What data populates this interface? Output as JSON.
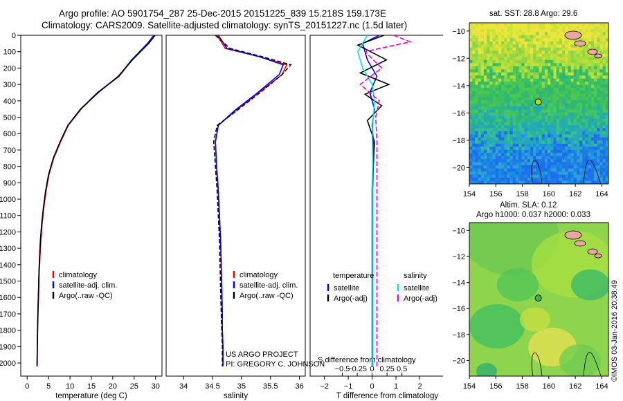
{
  "header": {
    "line1": "Argo profile: AO 5901754_287 25-Dec-2015 20151225_839 15.218S 159.173E",
    "line2": "Climatology: CARS2009. Satellite-adjusted climatology: synTS_20151227.nc (1.5d later)"
  },
  "colors": {
    "climatology": "#ff0000",
    "satellite": "#0000ff",
    "argo": "#000000",
    "sat_salinity": "#00e5e5",
    "argo_salinity": "#e600e6",
    "land": "#e8a8a0"
  },
  "depth_axis": {
    "ticks": [
      0,
      100,
      200,
      300,
      400,
      500,
      600,
      700,
      800,
      900,
      1000,
      1100,
      1200,
      1300,
      1400,
      1500,
      1600,
      1700,
      1800,
      1900,
      2000
    ],
    "range": [
      0,
      2080
    ]
  },
  "chart_data": [
    {
      "type": "line",
      "xlabel": "temperature (deg C)",
      "xlim": [
        -1.5,
        31.5
      ],
      "xticks": [
        0,
        5,
        10,
        15,
        20,
        25,
        30
      ],
      "ylim": [
        2080,
        0
      ],
      "series": [
        {
          "name": "climatology",
          "color": "#ff0000",
          "x": [
            29.7,
            28.2,
            24.5,
            21.5,
            16.5,
            12.6,
            9.6,
            7.8,
            6.2,
            5.1,
            4.4,
            3.9,
            3.5,
            3.2,
            3.0,
            2.8,
            2.7,
            2.6,
            2.5,
            2.4,
            2.35
          ],
          "y": [
            0,
            50,
            150,
            250,
            350,
            450,
            550,
            650,
            750,
            850,
            950,
            1050,
            1150,
            1250,
            1350,
            1450,
            1550,
            1650,
            1750,
            1850,
            2020
          ]
        },
        {
          "name": "satellite-adj. clim.",
          "color": "#0000ff",
          "x": [
            29.6,
            28.1,
            24.4,
            21.4,
            16.4,
            12.5,
            9.5,
            7.7,
            6.1,
            5.0,
            4.3,
            3.8,
            3.4,
            3.1,
            2.9,
            2.75,
            2.65,
            2.55,
            2.45,
            2.38,
            2.3
          ],
          "y": [
            0,
            50,
            150,
            250,
            350,
            450,
            550,
            650,
            750,
            850,
            950,
            1050,
            1150,
            1250,
            1350,
            1450,
            1550,
            1650,
            1750,
            1850,
            2020
          ]
        },
        {
          "name": "Argo(..raw -QC)",
          "color": "#000000",
          "x": [
            29.9,
            28.4,
            24.6,
            21.3,
            16.6,
            12.5,
            9.5,
            7.7,
            6.1,
            5.0,
            4.3,
            3.8,
            3.4,
            3.1,
            2.9,
            2.75,
            2.65,
            2.55,
            2.45,
            2.38,
            2.3
          ],
          "y": [
            0,
            50,
            150,
            250,
            350,
            450,
            550,
            650,
            750,
            850,
            950,
            1050,
            1150,
            1250,
            1350,
            1450,
            1550,
            1650,
            1750,
            1850,
            2020
          ]
        }
      ],
      "legend": [
        "climatology",
        "satellite-adj. clim.",
        "Argo(..raw -QC)"
      ]
    },
    {
      "type": "line",
      "xlabel": "salinity",
      "xlim": [
        33.7,
        36.1
      ],
      "xticks": [
        34,
        34.5,
        35,
        35.5,
        36
      ],
      "xticklabels": [
        "34",
        "34.5",
        "35",
        "35.5",
        "36"
      ],
      "ylim": [
        2080,
        0
      ],
      "series": [
        {
          "name": "climatology",
          "color": "#ff0000",
          "x": [
            34.58,
            34.72,
            35.3,
            35.78,
            35.7,
            35.3,
            34.9,
            34.6,
            34.55,
            34.57,
            34.6,
            34.62,
            34.64,
            34.65,
            34.66,
            34.67,
            34.67,
            34.68,
            34.68,
            34.68
          ],
          "y": [
            0,
            80,
            130,
            180,
            240,
            350,
            460,
            550,
            650,
            800,
            950,
            1100,
            1250,
            1400,
            1550,
            1700,
            1800,
            1900,
            1950,
            2020
          ]
        },
        {
          "name": "satellite-adj. clim.",
          "color": "#0000ff",
          "x": [
            34.6,
            34.75,
            35.3,
            35.72,
            35.65,
            35.28,
            34.88,
            34.6,
            34.55,
            34.57,
            34.6,
            34.62,
            34.64,
            34.65,
            34.66,
            34.67,
            34.67,
            34.68,
            34.68,
            34.68
          ],
          "y": [
            0,
            80,
            130,
            180,
            240,
            350,
            460,
            550,
            650,
            800,
            950,
            1100,
            1250,
            1400,
            1550,
            1700,
            1800,
            1900,
            1950,
            2020
          ]
        },
        {
          "name": "Argo(..raw -QC)",
          "color": "#000000",
          "x": [
            34.55,
            34.8,
            35.35,
            35.85,
            35.7,
            35.32,
            34.92,
            34.58,
            34.52,
            34.55,
            34.58,
            34.6,
            34.62,
            34.63,
            34.64,
            34.65,
            34.66,
            34.67,
            34.67,
            34.67
          ],
          "y": [
            0,
            80,
            130,
            180,
            240,
            350,
            460,
            550,
            650,
            800,
            950,
            1100,
            1250,
            1400,
            1550,
            1700,
            1800,
            1900,
            1950,
            2020
          ]
        }
      ],
      "legend": [
        "climatology",
        "satellite-adj. clim.",
        "Argo(..raw -QC)"
      ],
      "annotation": [
        "US ARGO PROJECT",
        "PI: GREGORY C. JOHNSON"
      ]
    },
    {
      "type": "line",
      "xlabel": "T difference from climatology",
      "xlabel2": "S difference from climatology",
      "xlim": [
        -2.6,
        3.0
      ],
      "xticks": [
        -2,
        -1,
        0,
        1,
        2
      ],
      "xticklabels": [
        "−2",
        "−1",
        "0",
        "1",
        "2"
      ],
      "sticks": [
        -1.25,
        -0.625,
        0,
        0.625,
        1.25
      ],
      "sticklabels": [
        "−0.5",
        "−0.25",
        "0",
        "0.25",
        "0.5"
      ],
      "ylim": [
        2080,
        0
      ],
      "series": [
        {
          "name": "temperature satellite",
          "color": "#0000ff",
          "x": [
            0.3,
            -0.4,
            -0.2,
            0.2,
            -0.1,
            0.1,
            0.0,
            0.05,
            0.02,
            0.0,
            0.0,
            0.0,
            0.0,
            0.0,
            0.0,
            0.0
          ],
          "y": [
            0,
            50,
            150,
            250,
            350,
            450,
            550,
            650,
            800,
            950,
            1100,
            1300,
            1500,
            1700,
            1900,
            2020
          ]
        },
        {
          "name": "temperature Argo(-adj)",
          "color": "#000000",
          "x": [
            0.5,
            -0.6,
            0.6,
            -0.5,
            0.7,
            -0.3,
            0.4,
            -0.2,
            0.1,
            0.05,
            0.02,
            0.02,
            0.02,
            0.02,
            0.02,
            0.02
          ],
          "y": [
            0,
            60,
            150,
            230,
            300,
            360,
            430,
            520,
            650,
            800,
            950,
            1150,
            1350,
            1600,
            1850,
            2020
          ]
        },
        {
          "name": "salinity satellite",
          "color": "#00e5e5",
          "x": [
            -0.2,
            -0.6,
            -0.4,
            0.0,
            0.1,
            0.05,
            0.0,
            0.02,
            0.02,
            0.02,
            0.02,
            0.02,
            0.02,
            0.02,
            0.02
          ],
          "y": [
            0,
            100,
            200,
            300,
            400,
            500,
            600,
            750,
            900,
            1100,
            1300,
            1500,
            1700,
            1900,
            2020
          ]
        },
        {
          "name": "salinity Argo(-adj)",
          "color": "#e600e6",
          "x": [
            0.9,
            1.6,
            -0.3,
            0.4,
            -0.5,
            0.3,
            0.15,
            0.2,
            0.2,
            0.2,
            0.2,
            0.2,
            0.2,
            0.2,
            0.2
          ],
          "y": [
            0,
            40,
            100,
            200,
            300,
            400,
            500,
            650,
            800,
            1000,
            1200,
            1400,
            1600,
            1800,
            2020
          ]
        }
      ],
      "legend_titles": [
        "temperature",
        "salinity"
      ],
      "legend": [
        "satellite",
        "Argo(-adj)",
        "satellite",
        "Argo(-adj)"
      ]
    }
  ],
  "maps": [
    {
      "title": "sat. SST: 28.8 Argo: 29.6",
      "lon_ticks": [
        "154",
        "156",
        "158",
        "160",
        "162",
        "164"
      ],
      "lat_ticks": [
        "−10",
        "−12",
        "−14",
        "−16",
        "−18",
        "−20"
      ],
      "marker": {
        "lon": 159.2,
        "lat": -15.2
      }
    },
    {
      "title_line1": "Altim. SLA: 0.12",
      "title_line2": "Argo h1000: 0.037 h2000: 0.033",
      "lon_ticks": [
        "154",
        "156",
        "158",
        "160",
        "162",
        "164"
      ],
      "lat_ticks": [
        "−10",
        "−12",
        "−14",
        "−16",
        "−18",
        "−20"
      ],
      "marker": {
        "lon": 159.2,
        "lat": -15.2
      }
    }
  ],
  "credit": "©IMOS 03-Jan-2016 20:38:49"
}
